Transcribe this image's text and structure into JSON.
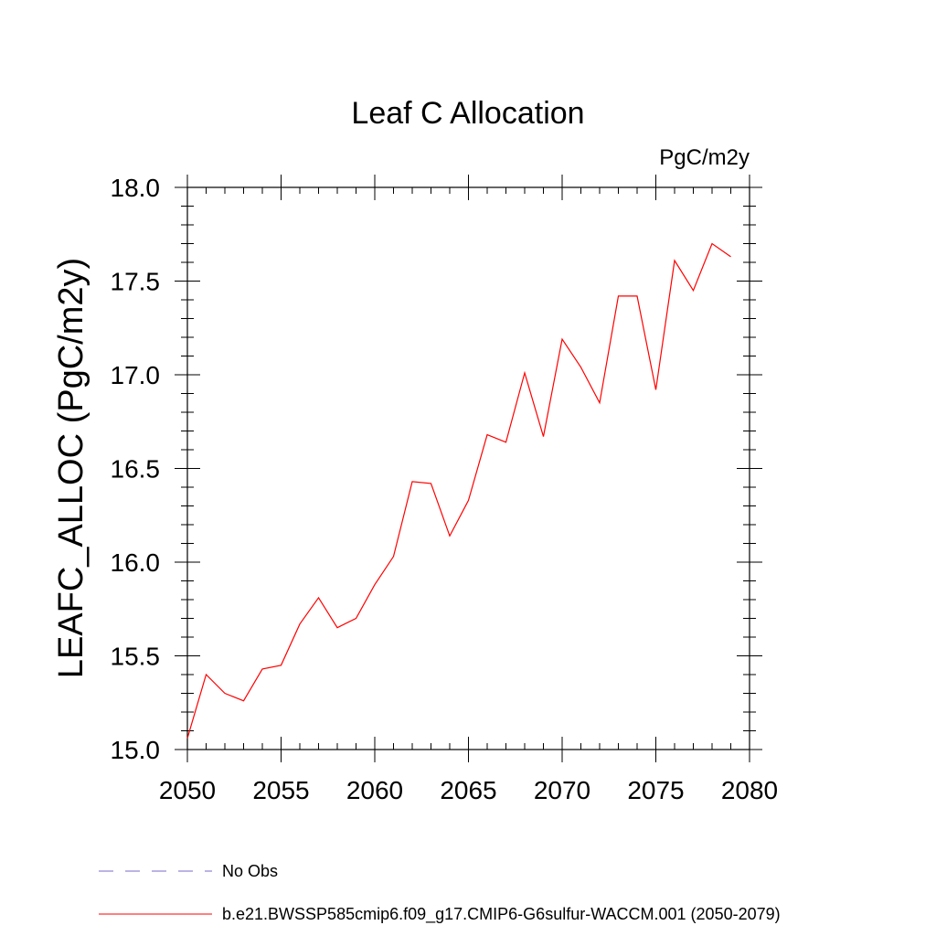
{
  "chart_data": {
    "type": "line",
    "title": "Leaf C Allocation",
    "units_label": "PgC/m2y",
    "ylabel": "LEAFC_ALLOC  (PgC/m2y)",
    "xlabel": "",
    "xlim": [
      2050,
      2080
    ],
    "ylim": [
      15.0,
      18.0
    ],
    "x_ticks": [
      2050,
      2055,
      2060,
      2065,
      2070,
      2075,
      2080
    ],
    "y_ticks": [
      15.0,
      15.5,
      16.0,
      16.5,
      17.0,
      17.5,
      18.0
    ],
    "x_tick_labels": [
      "2050",
      "2055",
      "2060",
      "2065",
      "2070",
      "2075",
      "2080"
    ],
    "y_tick_labels": [
      "15.0",
      "15.5",
      "16.0",
      "16.5",
      "17.0",
      "17.5",
      "18.0"
    ],
    "grid": false,
    "legend_position": "bottom",
    "series": [
      {
        "name": "b.e21.BWSSP585cmip6.f09_g17.CMIP6-G6sulfur-WACCM.001 (2050-2079)",
        "color": "#ff0000",
        "style": "solid",
        "x": [
          2050,
          2051,
          2052,
          2053,
          2054,
          2055,
          2056,
          2057,
          2058,
          2059,
          2060,
          2061,
          2062,
          2063,
          2064,
          2065,
          2066,
          2067,
          2068,
          2069,
          2070,
          2071,
          2072,
          2073,
          2074,
          2075,
          2076,
          2077,
          2078,
          2079
        ],
        "values": [
          15.06,
          15.4,
          15.3,
          15.26,
          15.43,
          15.45,
          15.67,
          15.81,
          15.65,
          15.7,
          15.88,
          16.03,
          16.43,
          16.42,
          16.14,
          16.33,
          16.68,
          16.64,
          17.01,
          16.67,
          17.19,
          17.04,
          16.85,
          17.42,
          17.42,
          16.92,
          17.61,
          17.45,
          17.7,
          17.63
        ]
      }
    ],
    "legend": [
      {
        "label": "No Obs",
        "color": "#7b68c8",
        "style": "dashed"
      },
      {
        "label": "b.e21.BWSSP585cmip6.f09_g17.CMIP6-G6sulfur-WACCM.001 (2050-2079)",
        "color": "#ff0000",
        "style": "solid"
      }
    ]
  }
}
